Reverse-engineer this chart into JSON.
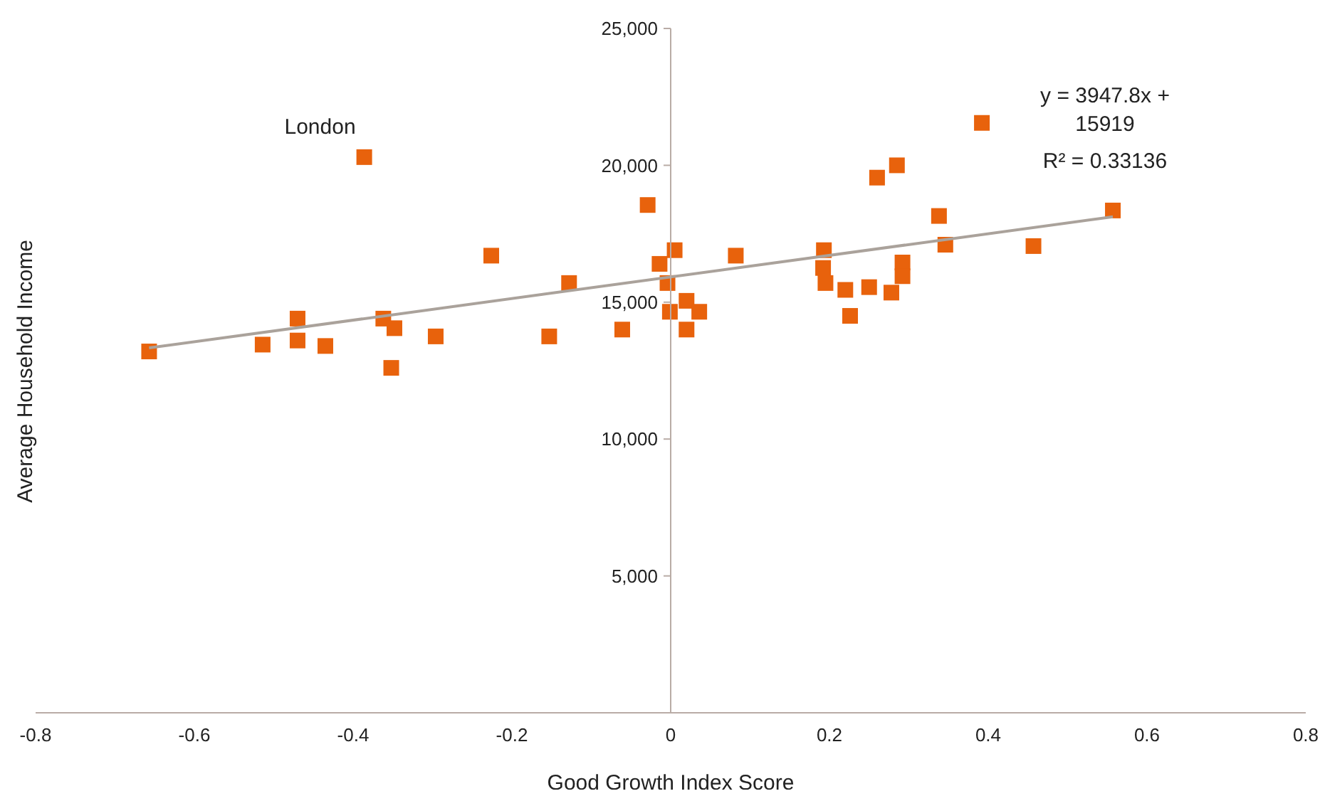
{
  "chart_data": {
    "type": "scatter",
    "xlabel": "Good Growth Index Score",
    "ylabel": "Average Household Income",
    "xlim": [
      -0.8,
      0.8
    ],
    "xticks": [
      -0.8,
      -0.6,
      -0.4,
      -0.2,
      0,
      0.2,
      0.4,
      0.6,
      0.8
    ],
    "ylim": [
      0,
      25000
    ],
    "yticks": [
      {
        "value": 5000,
        "label": "5,000"
      },
      {
        "value": 10000,
        "label": "10,000"
      },
      {
        "value": 15000,
        "label": "15,000"
      },
      {
        "value": 20000,
        "label": "20,000"
      },
      {
        "value": 25000,
        "label": "25,000"
      }
    ],
    "grid": false,
    "legend": false,
    "marker": "square",
    "series": [
      {
        "color": "#e8620c",
        "x": [
          -0.657,
          -0.514,
          -0.47,
          -0.47,
          -0.435,
          -0.386,
          -0.362,
          -0.348,
          -0.352,
          -0.296,
          -0.226,
          -0.128,
          -0.153,
          -0.061,
          -0.029,
          -0.014,
          0.005,
          -0.004,
          -0.001,
          0.02,
          0.02,
          0.036,
          0.082,
          0.193,
          0.192,
          0.195,
          0.22,
          0.226,
          0.25,
          0.26,
          0.278,
          0.285,
          0.292,
          0.292,
          0.338,
          0.346,
          0.392,
          0.457,
          0.557
        ],
        "values": [
          13200,
          13450,
          14400,
          13600,
          13400,
          20300,
          14400,
          14050,
          12600,
          13750,
          16700,
          15700,
          13750,
          14000,
          18550,
          16400,
          16900,
          15700,
          14650,
          15050,
          14000,
          14650,
          16700,
          16900,
          16250,
          15700,
          15450,
          14500,
          15550,
          19550,
          15350,
          20000,
          16450,
          15950,
          18150,
          17100,
          21550,
          17050,
          18350
        ]
      },
      {
        "type": "line",
        "color": "#aaa29b",
        "marker": "none",
        "line_style": "solid",
        "x": [
          -0.657,
          0.557
        ],
        "values": [
          13330,
          18120
        ]
      }
    ],
    "annotations": [
      {
        "text": "London",
        "x": -0.386,
        "y": 20300
      },
      "y = 3947.8x + 15919",
      "R² = 0.33136"
    ]
  }
}
